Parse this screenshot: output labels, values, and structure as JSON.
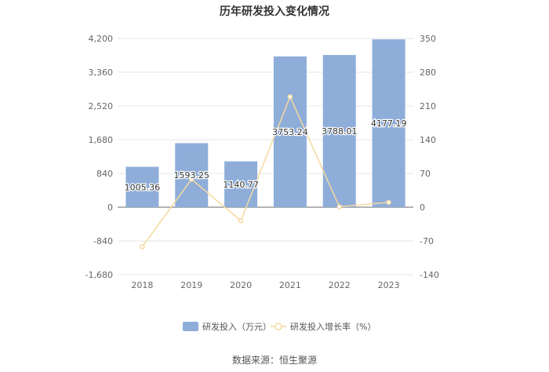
{
  "chart_data": {
    "type": "bar",
    "title": "历年研发投入变化情况",
    "categories": [
      "2018",
      "2019",
      "2020",
      "2021",
      "2022",
      "2023"
    ],
    "series": [
      {
        "name": "研发投入（万元）",
        "type": "bar",
        "axis": "left",
        "values": [
          1005.36,
          1593.25,
          1140.77,
          3753.24,
          3788.01,
          4177.19
        ],
        "labels": [
          "1005.36",
          "1593.25",
          "1140.77",
          "3753.24",
          "3788.01",
          "4177.19"
        ],
        "color": "#8eadd9"
      },
      {
        "name": "研发投入增长率（%）",
        "type": "line",
        "axis": "right",
        "values": [
          -82,
          58,
          -28,
          229,
          1,
          10
        ],
        "color": "#f5d9a0"
      }
    ],
    "y_left": {
      "min": -1680,
      "max": 4200,
      "ticks": [
        "4,200",
        "3,360",
        "2,520",
        "1,680",
        "840",
        "0",
        "-840",
        "-1,680"
      ],
      "tick_values": [
        4200,
        3360,
        2520,
        1680,
        840,
        0,
        -840,
        -1680
      ]
    },
    "y_right": {
      "min": -140,
      "max": 350,
      "ticks": [
        "350",
        "280",
        "210",
        "140",
        "70",
        "0",
        "-70",
        "-140"
      ],
      "tick_values": [
        350,
        280,
        210,
        140,
        70,
        0,
        -70,
        -140
      ]
    },
    "grid": true,
    "legend_position": "bottom"
  },
  "source": "数据来源：恒生聚源"
}
